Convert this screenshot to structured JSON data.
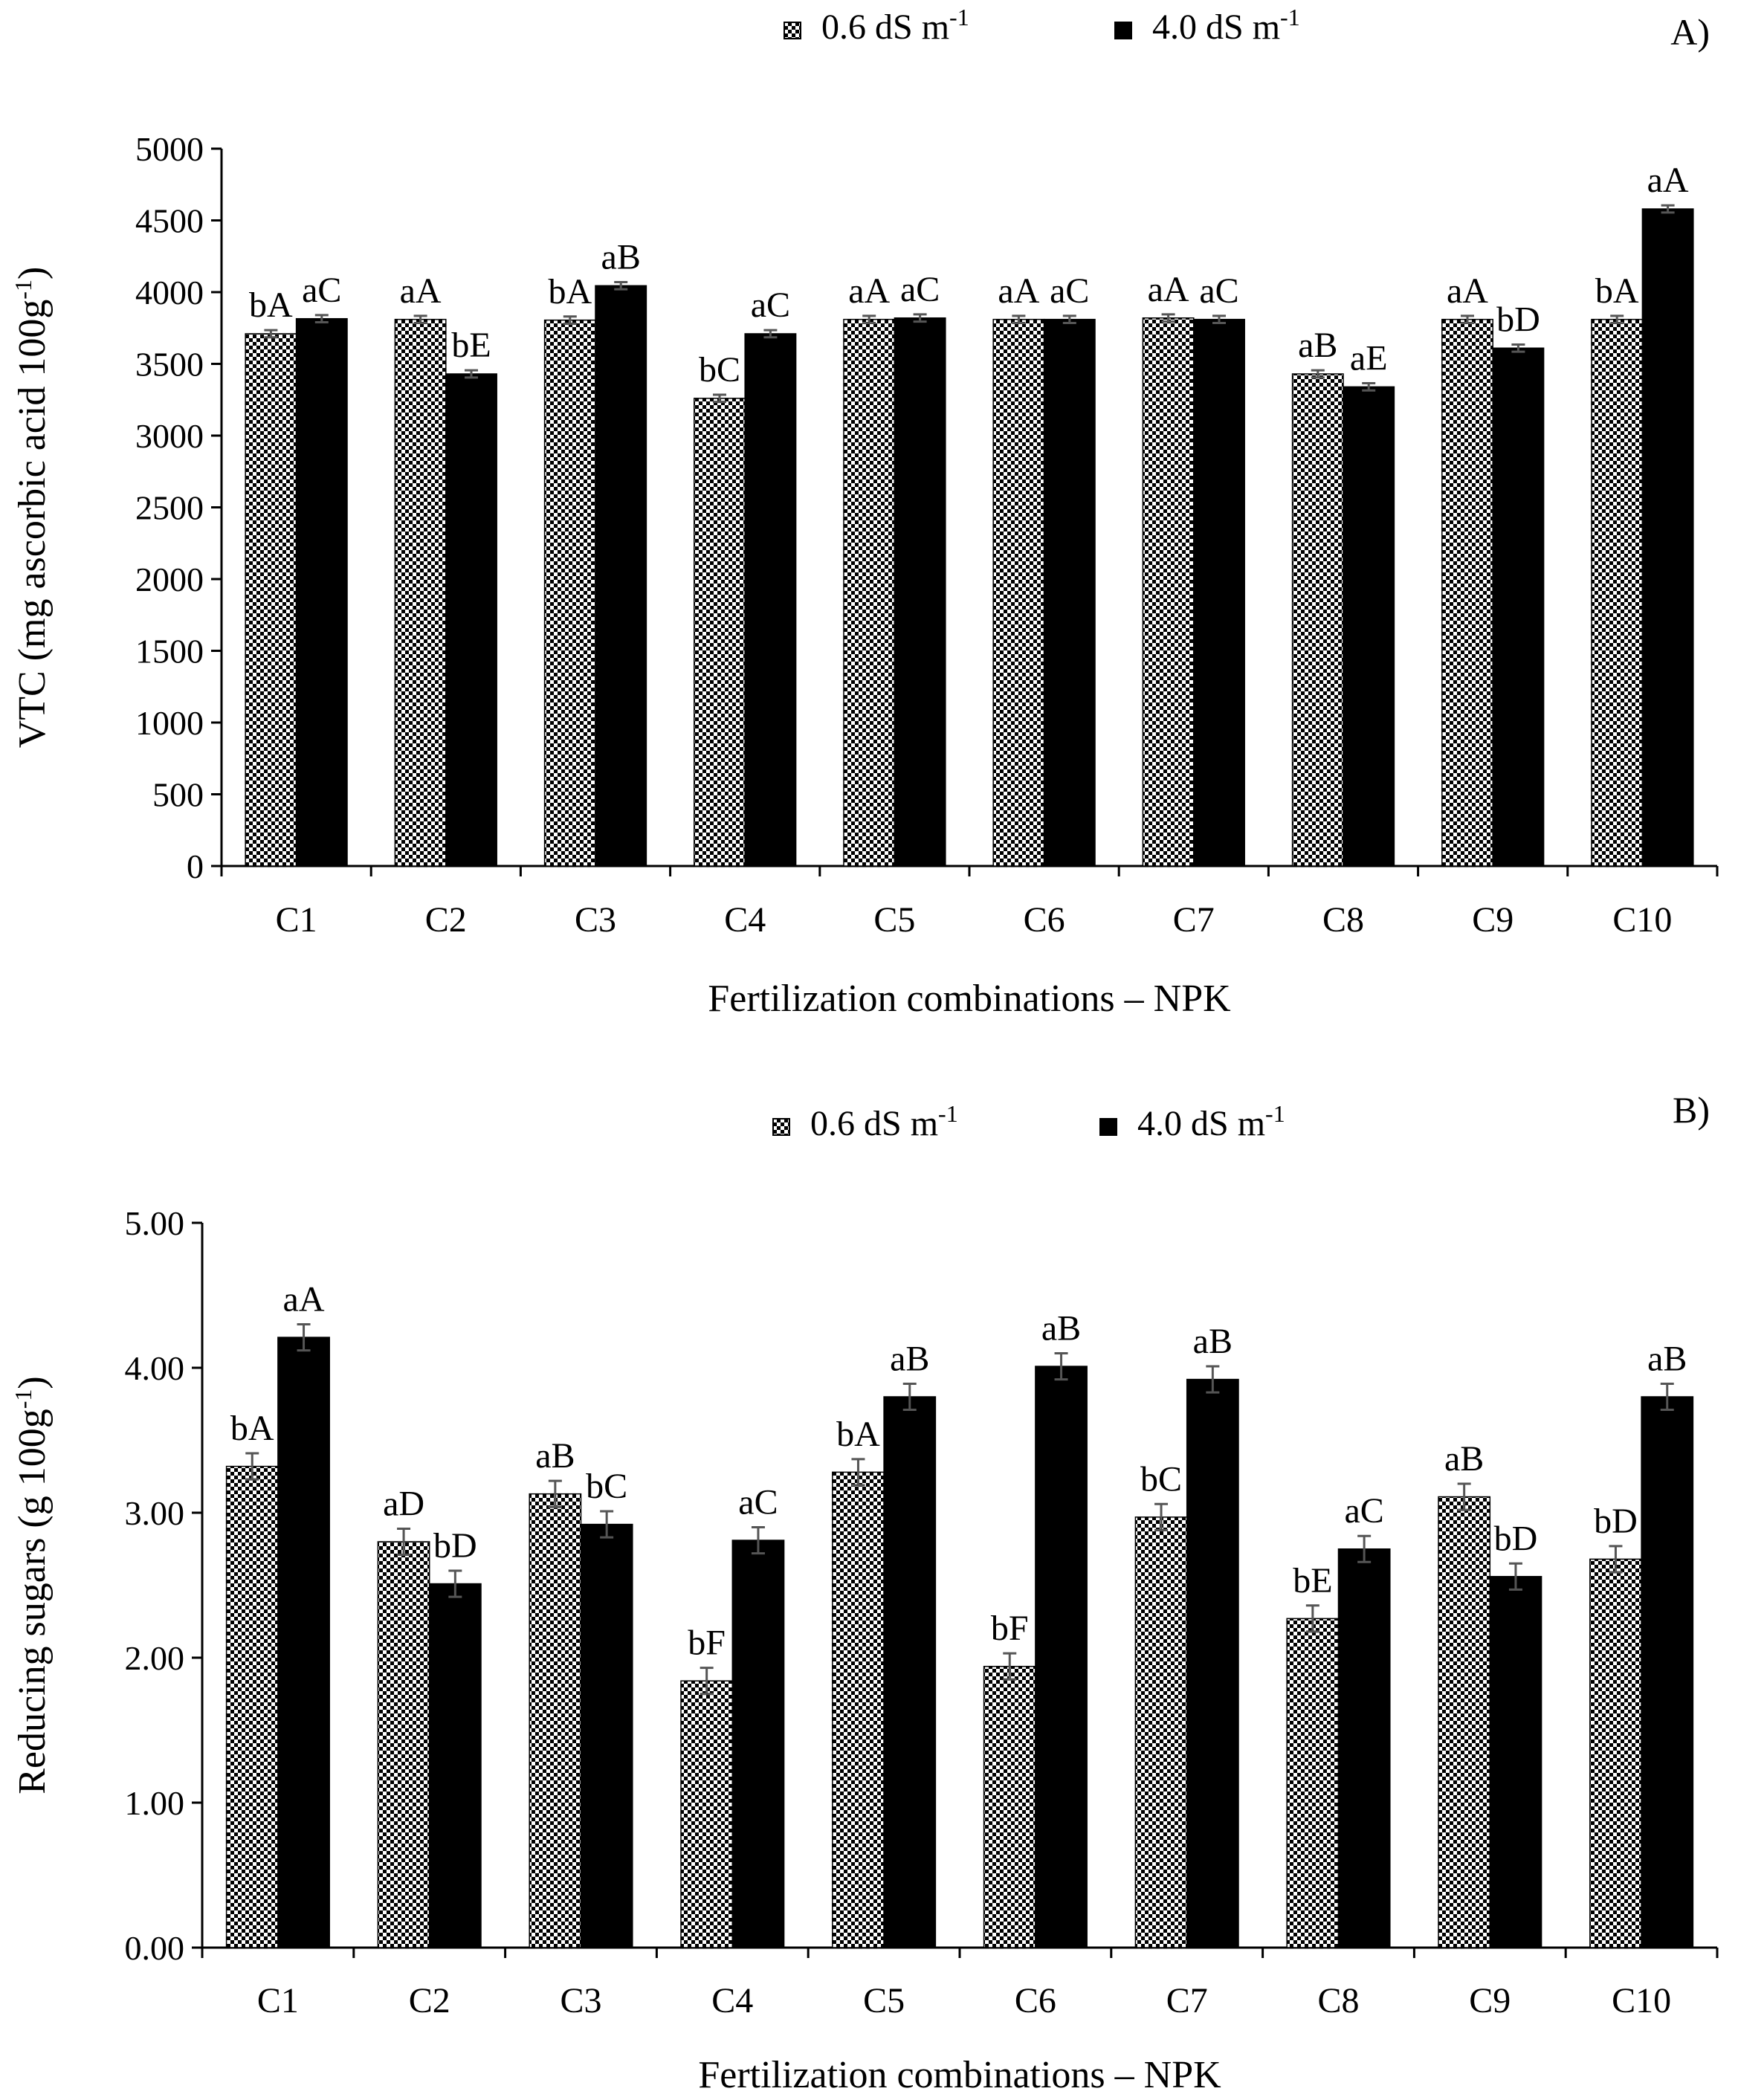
{
  "colors": {
    "series_low_fill": "#ffffff",
    "series_low_pattern": "#000000",
    "series_high_fill": "#000000",
    "error_bar": "#555555",
    "axis": "#000000"
  },
  "chart_data": [
    {
      "type": "bar",
      "panel_label": "A)",
      "title": "",
      "xlabel": "Fertilization combinations – NPK",
      "ylabel": "VTC (mg ascorbic acid 100g",
      "ylabel_sup": "-1",
      "ylabel_close": ")",
      "ylim": [
        0,
        5000
      ],
      "yticks": [
        0,
        500,
        1000,
        1500,
        2000,
        2500,
        3000,
        3500,
        4000,
        4500,
        5000
      ],
      "ytick_labels": [
        "0",
        "500",
        "1000",
        "1500",
        "2000",
        "2500",
        "3000",
        "3500",
        "4000",
        "4500",
        "5000"
      ],
      "legend": [
        {
          "text": "0.6 dS m",
          "sup": "-1",
          "style": "checkered"
        },
        {
          "text": "4.0 dS m",
          "sup": "-1",
          "style": "solid"
        }
      ],
      "legend_position": "top",
      "categories": [
        "C1",
        "C2",
        "C3",
        "C4",
        "C5",
        "C6",
        "C7",
        "C8",
        "C9",
        "C10"
      ],
      "series": [
        {
          "name": "0.6 dS m-1",
          "values": [
            3710,
            3810,
            3805,
            3260,
            3810,
            3810,
            3820,
            3430,
            3810,
            3810
          ],
          "errors": [
            25,
            25,
            25,
            25,
            25,
            25,
            25,
            25,
            25,
            25
          ],
          "labels": [
            "bA",
            "aA",
            "bA",
            "bC",
            "aA",
            "aA",
            "aA",
            "aB",
            "aA",
            "bA"
          ]
        },
        {
          "name": "4.0 dS m-1",
          "values": [
            3815,
            3430,
            4045,
            3710,
            3820,
            3810,
            3810,
            3340,
            3610,
            4580
          ],
          "errors": [
            25,
            25,
            25,
            25,
            25,
            25,
            25,
            25,
            25,
            25
          ],
          "labels": [
            "aC",
            "bE",
            "aB",
            "aC",
            "aC",
            "aC",
            "aC",
            "aE",
            "bD",
            "aA"
          ]
        }
      ]
    },
    {
      "type": "bar",
      "panel_label": "B)",
      "title": "",
      "xlabel": "Fertilization combinations – NPK",
      "ylabel": "Reducing sugars (g 100g",
      "ylabel_sup": "-1",
      "ylabel_close": ")",
      "ylim": [
        0,
        5
      ],
      "yticks": [
        0,
        1,
        2,
        3,
        4,
        5
      ],
      "ytick_labels": [
        "0.00",
        "1.00",
        "2.00",
        "3.00",
        "4.00",
        "5.00"
      ],
      "legend": [
        {
          "text": "0.6 dS m",
          "sup": "-1",
          "style": "checkered"
        },
        {
          "text": "4.0 dS m",
          "sup": "-1",
          "style": "solid"
        }
      ],
      "legend_position": "top",
      "categories": [
        "C1",
        "C2",
        "C3",
        "C4",
        "C5",
        "C6",
        "C7",
        "C8",
        "C9",
        "C10"
      ],
      "series": [
        {
          "name": "0.6 dS m-1",
          "values": [
            3.32,
            2.8,
            3.13,
            1.84,
            3.28,
            1.94,
            2.97,
            2.27,
            3.11,
            2.68
          ],
          "errors": [
            0.09,
            0.09,
            0.09,
            0.09,
            0.09,
            0.09,
            0.09,
            0.09,
            0.09,
            0.09
          ],
          "labels": [
            "bA",
            "aD",
            "aB",
            "bF",
            "bA",
            "bF",
            "bC",
            "bE",
            "aB",
            "bD"
          ]
        },
        {
          "name": "4.0 dS m-1",
          "values": [
            4.21,
            2.51,
            2.92,
            2.81,
            3.8,
            4.01,
            3.92,
            2.75,
            2.56,
            3.8
          ],
          "errors": [
            0.09,
            0.09,
            0.09,
            0.09,
            0.09,
            0.09,
            0.09,
            0.09,
            0.09,
            0.09
          ],
          "labels": [
            "aA",
            "bD",
            "bC",
            "aC",
            "aB",
            "aB",
            "aB",
            "aC",
            "bD",
            "aB"
          ]
        }
      ]
    }
  ]
}
